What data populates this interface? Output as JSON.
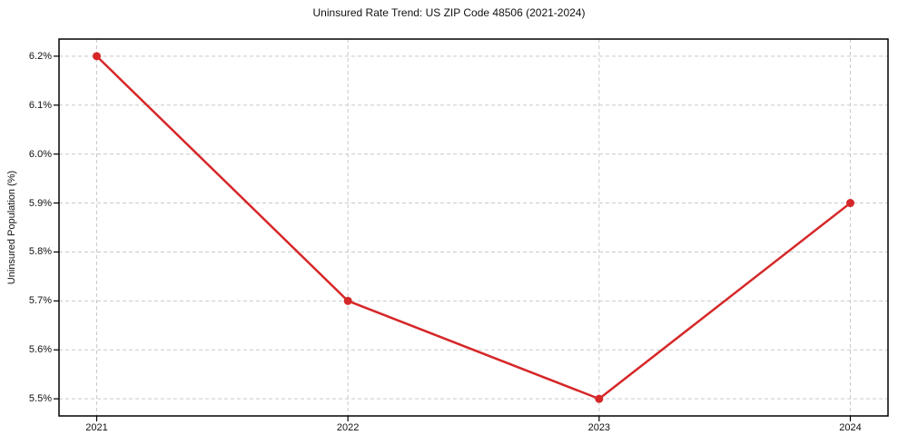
{
  "chart_data": {
    "type": "line",
    "title": "Uninsured Rate Trend: US ZIP Code 48506 (2021-2024)",
    "xlabel": "",
    "ylabel": "Uninsured Population (%)",
    "x": [
      2021,
      2022,
      2023,
      2024
    ],
    "x_tick_labels": [
      "2021",
      "2022",
      "2023",
      "2024"
    ],
    "series": [
      {
        "name": "uninsured-rate",
        "values": [
          6.2,
          5.7,
          5.5,
          5.9
        ]
      }
    ],
    "y_ticks": [
      5.5,
      5.6,
      5.7,
      5.8,
      5.9,
      6.0,
      6.1,
      6.2
    ],
    "y_tick_labels": [
      "5.5%",
      "5.6%",
      "5.7%",
      "5.8%",
      "5.9%",
      "6.0%",
      "6.1%",
      "6.2%"
    ],
    "xlim": [
      2020.85,
      2024.15
    ],
    "ylim": [
      5.465,
      6.235
    ],
    "grid": true,
    "grid_style": "dashed",
    "legend": "none",
    "colors": {
      "line": "#d62728",
      "marker": "#d62728",
      "grid": "#c9c9c9",
      "spine": "#000000",
      "background": "#ffffff",
      "text": "#111111"
    }
  }
}
